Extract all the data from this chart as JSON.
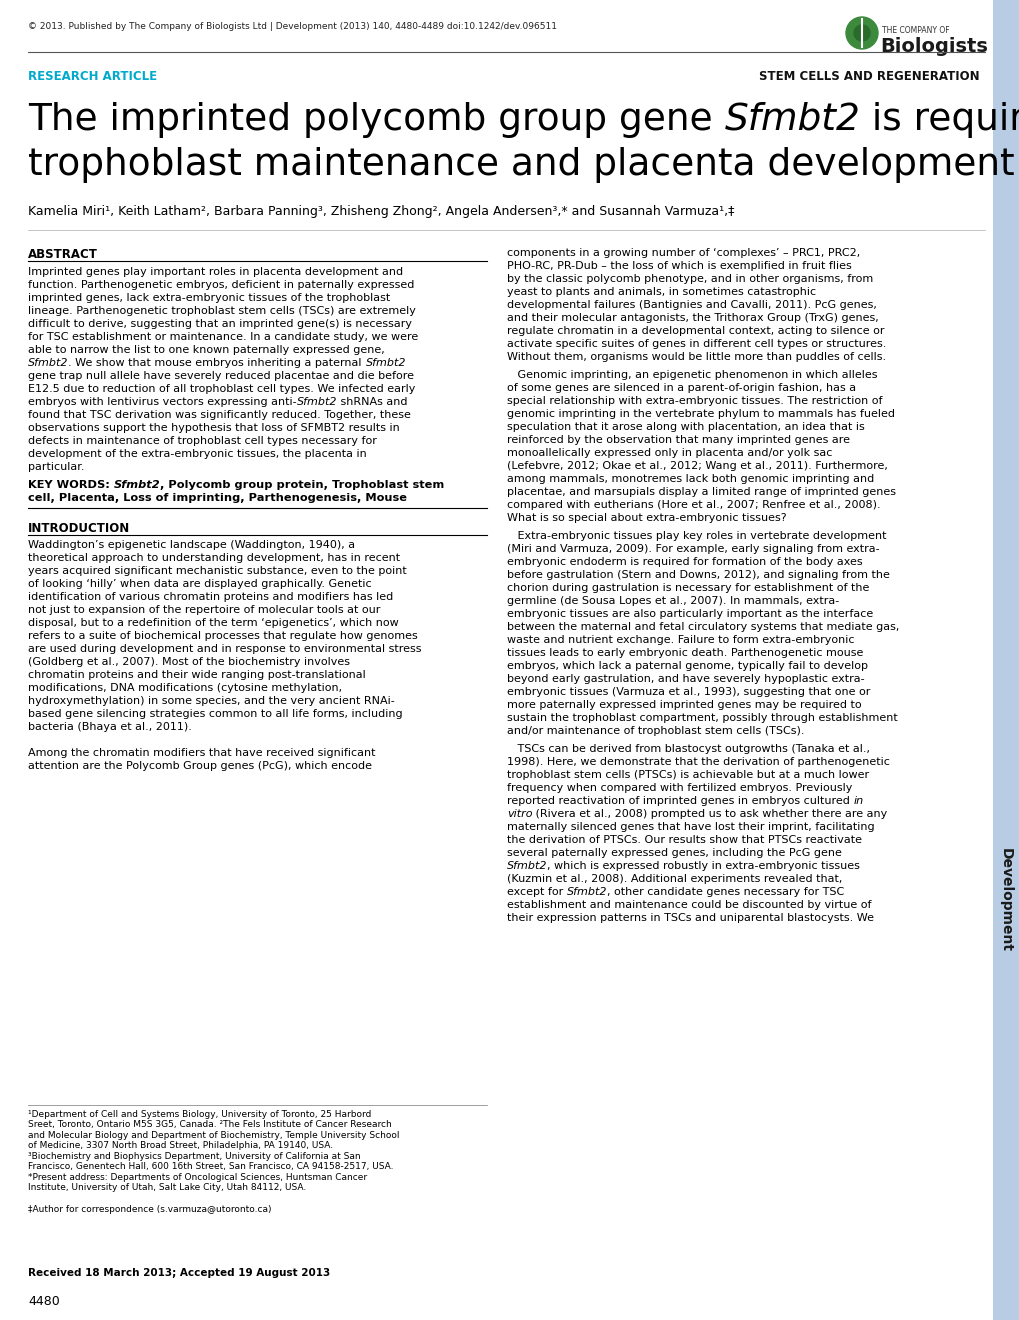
{
  "background_color": "#ffffff",
  "sidebar_color": "#b8cce4",
  "header_copyright": "© 2013. Published by The Company of Biologists Ltd | Development (2013) 140, 4480-4489 doi:10.1242/dev.096511",
  "label_research": "RESEARCH ARTICLE",
  "label_stem": "STEM CELLS AND REGENERATION",
  "authors": "Kamelia Miri¹, Keith Latham², Barbara Panning³, Zhisheng Zhong², Angela Andersen³,* and Susannah Varmuza¹,‡",
  "abstract_title": "ABSTRACT",
  "intro_title": "INTRODUCTION",
  "keywords_bold": "KEY WORDS: ",
  "keywords_italic": "Sfmbt2",
  "keywords_rest": ", Polycomb group protein, Trophoblast stem cell, Placenta, Loss of imprinting, Parthenogenesis, Mouse",
  "page_number": "4480",
  "sidebar_text": "Development",
  "received_text": "Received 18 March 2013; Accepted 19 August 2013",
  "correspondence_text": "‡Author for correspondence (s.varmuza@utoronto.ca)"
}
